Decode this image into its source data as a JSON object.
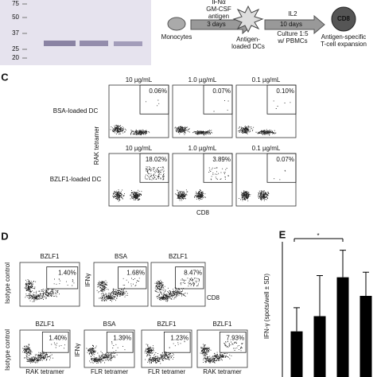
{
  "gel": {
    "markers": [
      "75",
      "50",
      "37",
      "25",
      "20"
    ]
  },
  "workflow": {
    "monocytes": "Monocytes",
    "arrow1": [
      "IFNα",
      "GM-CSF",
      "antigen"
    ],
    "arrow1_duration": "3 days",
    "dcs": [
      "Antigen-",
      "loaded DCs"
    ],
    "arrow2_top": "IL2",
    "arrow2_duration": "10 days",
    "arrow2_bottom": [
      "Culture 1:5",
      "w/ PBMCs"
    ],
    "cd8": "CD8",
    "result": [
      "Antigen-specific",
      "T-cell expansion"
    ]
  },
  "panel_c": {
    "label": "C",
    "y_label": "RAK tetramer",
    "x_label": "CD8",
    "rows": [
      {
        "name": "BSA-loaded DC",
        "plots": [
          {
            "title": "10 µg/mL",
            "percent": "0.06%"
          },
          {
            "title": "1.0 µg/mL",
            "percent": "0.07%"
          },
          {
            "title": "0.1 µg/mL",
            "percent": "0.10%"
          }
        ]
      },
      {
        "name": "BZLF1-loaded DC",
        "plots": [
          {
            "title": "10 µg/mL",
            "percent": "18.02%"
          },
          {
            "title": "1.0 µg/mL",
            "percent": "3.89%"
          },
          {
            "title": "0.1 µg/mL",
            "percent": "0.07%"
          }
        ]
      }
    ]
  },
  "panel_d": {
    "label": "D",
    "top": {
      "y_label": "Isotype control",
      "y2_label": "IFNγ",
      "x_label": "CD8",
      "plots": [
        {
          "title": "BZLF1",
          "percent": "1.40%"
        },
        {
          "title": "BSA",
          "percent": "1.68%"
        },
        {
          "title": "BZLF1",
          "percent": "8.47%"
        }
      ]
    },
    "bottom": {
      "y_label": "Isotype control",
      "y2_label": "IFNγ",
      "plots": [
        {
          "title": "BZLF1",
          "percent": "1.40%",
          "x_label": "RAK tetramer"
        },
        {
          "title": "BSA",
          "percent": "1.39%",
          "x_label": "FLR tetramer"
        },
        {
          "title": "BZLF1",
          "percent": "1.23%",
          "x_label": "FLR tetramer"
        },
        {
          "title": "BZLF1",
          "percent": "7.93%",
          "x_label": "RAK tetramer"
        }
      ]
    }
  },
  "chart_data": {
    "type": "bar",
    "label": "E",
    "y_label": "IFN-γ (spots/well ± SD)",
    "values": [
      27,
      36,
      59,
      48
    ],
    "errors": [
      14,
      24,
      16,
      14
    ],
    "color": "#000000",
    "ylim": [
      0,
      80
    ],
    "significance": "*"
  }
}
